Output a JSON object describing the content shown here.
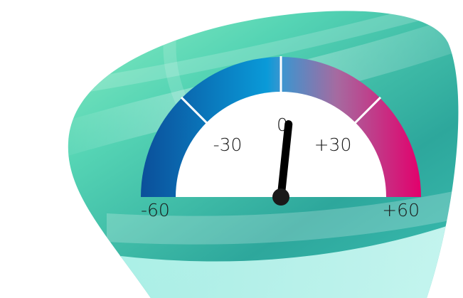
{
  "gauge": {
    "min": -60,
    "max": 60,
    "value": 4,
    "ticks": [
      -60,
      -30,
      0,
      30,
      60
    ],
    "labels": {
      "min": "-60",
      "minus30": "-30",
      "zero": "0",
      "plus30": "+30",
      "max": "+60"
    },
    "gradient_colors": [
      "#0b4f9a",
      "#0a9ad8",
      "#7b8fc4",
      "#c24f8a",
      "#e2006c"
    ]
  },
  "background": {
    "colors": [
      "#8ef0c0",
      "#4dd0b8",
      "#2aa99e",
      "#b9f2ee"
    ]
  }
}
